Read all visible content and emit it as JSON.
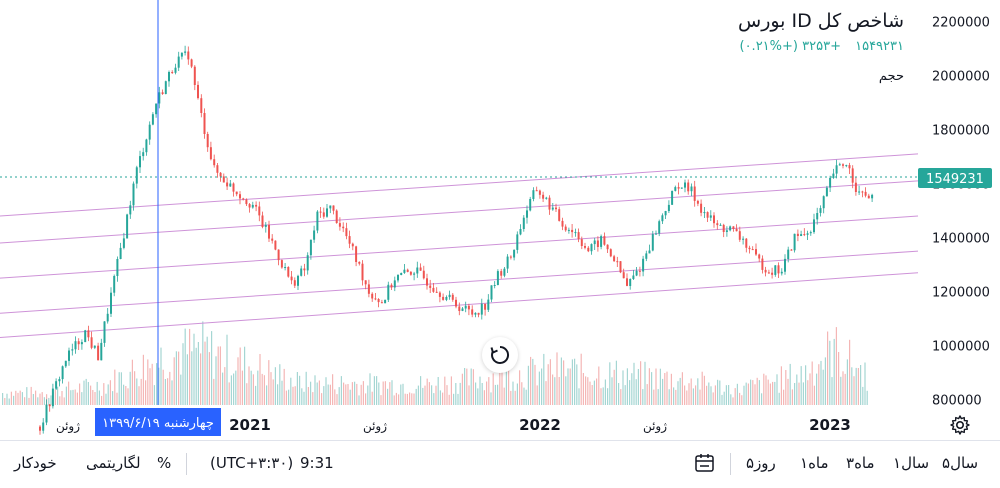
{
  "legend": {
    "title": "شاخص کل ID بورس",
    "last_value": "۱۵۴۹۲۳۱",
    "change": "+۳۲۵۳ (+۰.۲۱%)",
    "volume_label": "حجم"
  },
  "price_label": "1549231",
  "crosshair_label": "چهارشنبه ۱۳۹۹/۶/۱۹",
  "bottom_bar": {
    "ranges": [
      "۵سال",
      "۱سال",
      "۳ماه",
      "۱ماه",
      "۵روز"
    ],
    "time": "9:31",
    "timezone": "(UTC+۳:۳۰)",
    "percent": "%",
    "log": "لگاریتمی",
    "auto": "خودکار"
  },
  "colors": {
    "up": "#26a69a",
    "down": "#ef5350",
    "channel": "#ce93d8",
    "crosshair": "#2962ff",
    "last_price_line": "#26a69a"
  },
  "icons": {
    "reset": "reset-icon",
    "settings": "gear-icon",
    "date_range": "calendar-range-icon"
  },
  "chart_data": {
    "type": "candlestick",
    "title": "شاخص کل ID بورس",
    "y_axis_ticks": [
      "800000",
      "1000000",
      "1200000",
      "1400000",
      "1600000",
      "1800000",
      "2000000",
      "2200000"
    ],
    "x_axis_ticks": [
      "ژوئن",
      "2021",
      "ژوئن",
      "2022",
      "ژوئن",
      "2023"
    ],
    "ylim": [
      680000,
      2210000
    ],
    "last_price": 1549231,
    "crosshair_date": "چهارشنبه ۱۳۹۹/۶/۱۹",
    "trend_path": [
      [
        0,
        700000
      ],
      [
        4,
        950000
      ],
      [
        7,
        1050000
      ],
      [
        9,
        960000
      ],
      [
        12,
        1300000
      ],
      [
        15,
        1650000
      ],
      [
        18,
        1900000
      ],
      [
        21,
        2050000
      ],
      [
        23,
        2080000
      ],
      [
        25,
        1850000
      ],
      [
        27,
        1650000
      ],
      [
        30,
        1580000
      ],
      [
        33,
        1520000
      ],
      [
        36,
        1380000
      ],
      [
        39,
        1230000
      ],
      [
        41,
        1280000
      ],
      [
        43,
        1480000
      ],
      [
        45,
        1510000
      ],
      [
        47,
        1430000
      ],
      [
        49,
        1320000
      ],
      [
        51,
        1200000
      ],
      [
        53,
        1160000
      ],
      [
        55,
        1250000
      ],
      [
        58,
        1280000
      ],
      [
        61,
        1220000
      ],
      [
        64,
        1160000
      ],
      [
        67,
        1120000
      ],
      [
        69,
        1150000
      ],
      [
        71,
        1260000
      ],
      [
        73,
        1330000
      ],
      [
        75,
        1480000
      ],
      [
        77,
        1580000
      ],
      [
        79,
        1520000
      ],
      [
        81,
        1450000
      ],
      [
        83,
        1420000
      ],
      [
        85,
        1350000
      ],
      [
        87,
        1390000
      ],
      [
        89,
        1320000
      ],
      [
        91,
        1220000
      ],
      [
        93,
        1290000
      ],
      [
        95,
        1400000
      ],
      [
        97,
        1510000
      ],
      [
        99,
        1600000
      ],
      [
        101,
        1570000
      ],
      [
        103,
        1490000
      ],
      [
        105,
        1440000
      ],
      [
        107,
        1430000
      ],
      [
        109,
        1390000
      ],
      [
        111,
        1320000
      ],
      [
        113,
        1280000
      ],
      [
        115,
        1280000
      ],
      [
        117,
        1400000
      ],
      [
        119,
        1420000
      ],
      [
        121,
        1500000
      ],
      [
        123,
        1640000
      ],
      [
        125,
        1680000
      ],
      [
        127,
        1560000
      ],
      [
        129,
        1550000
      ]
    ],
    "volume_profile": [
      [
        0,
        0.12
      ],
      [
        10,
        0.2
      ],
      [
        20,
        0.5
      ],
      [
        25,
        0.55
      ],
      [
        40,
        0.22
      ],
      [
        60,
        0.2
      ],
      [
        80,
        0.35
      ],
      [
        100,
        0.25
      ],
      [
        108,
        0.15
      ],
      [
        118,
        0.3
      ],
      [
        123,
        0.55
      ],
      [
        129,
        0.25
      ]
    ],
    "channel_lines": [
      {
        "from": [
          0,
          1030000
        ],
        "to": [
          129,
          1270000
        ]
      },
      {
        "from": [
          0,
          1120000
        ],
        "to": [
          129,
          1350000
        ]
      },
      {
        "from": [
          0,
          1250000
        ],
        "to": [
          129,
          1480000
        ]
      },
      {
        "from": [
          0,
          1380000
        ],
        "to": [
          129,
          1610000
        ]
      },
      {
        "from": [
          0,
          1480000
        ],
        "to": [
          129,
          1710000
        ]
      }
    ]
  }
}
